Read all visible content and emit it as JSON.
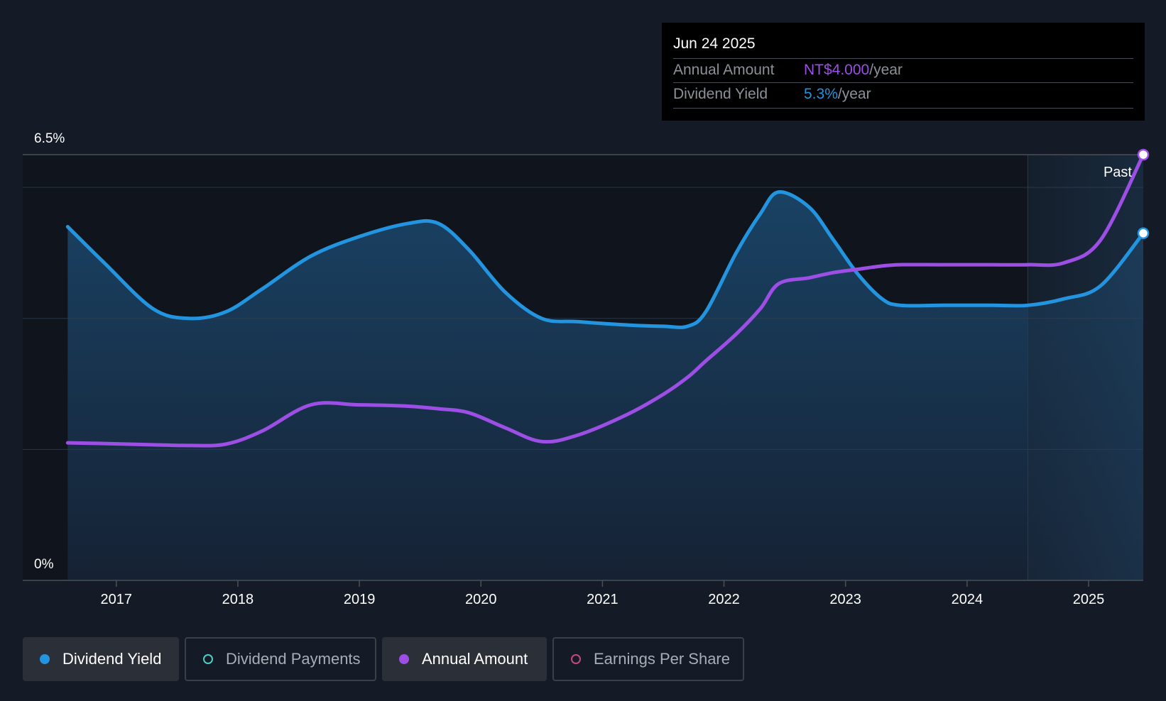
{
  "chart_data": {
    "type": "line",
    "title": "",
    "x": [
      2016.6,
      2016.9,
      2017.3,
      2017.6,
      2017.9,
      2018.2,
      2018.6,
      2019.0,
      2019.4,
      2019.65,
      2019.9,
      2020.2,
      2020.5,
      2020.8,
      2021.2,
      2021.5,
      2021.7,
      2021.85,
      2022.1,
      2022.3,
      2022.45,
      2022.7,
      2022.9,
      2023.1,
      2023.3,
      2023.45,
      2023.8,
      2024.2,
      2024.5,
      2024.8,
      2025.1,
      2025.45
    ],
    "series": [
      {
        "name": "Dividend Yield",
        "color": "#2394df",
        "values": [
          5.4,
          4.85,
          4.15,
          4.0,
          4.1,
          4.45,
          4.95,
          5.25,
          5.45,
          5.45,
          5.05,
          4.4,
          4.0,
          3.95,
          3.9,
          3.88,
          3.88,
          4.1,
          5.0,
          5.6,
          5.93,
          5.7,
          5.2,
          4.68,
          4.3,
          4.2,
          4.2,
          4.2,
          4.2,
          4.3,
          4.5,
          5.3
        ],
        "tooltip_value": "5.3%"
      },
      {
        "name": "Annual Amount",
        "color": "#9c4ee5",
        "values": [
          2.1,
          2.09,
          2.07,
          2.06,
          2.08,
          2.28,
          2.68,
          2.68,
          2.66,
          2.62,
          2.56,
          2.33,
          2.12,
          2.22,
          2.53,
          2.84,
          3.1,
          3.35,
          3.76,
          4.15,
          4.53,
          4.62,
          4.7,
          4.75,
          4.8,
          4.82,
          4.82,
          4.82,
          4.82,
          4.85,
          5.2,
          6.5
        ],
        "tooltip_value": "NT$4.000"
      }
    ],
    "y_axis": {
      "min_label": "0%",
      "max_label": "6.5%",
      "ylim": [
        0,
        6.5
      ],
      "gridlines": [
        2.0,
        4.0,
        6.0
      ]
    },
    "x_axis": {
      "ticks": [
        "2017",
        "2018",
        "2019",
        "2020",
        "2021",
        "2022",
        "2023",
        "2024",
        "2025"
      ],
      "tick_values": [
        2017,
        2018,
        2019,
        2020,
        2021,
        2022,
        2023,
        2024,
        2025
      ],
      "xlim": [
        2016.23,
        2025.45
      ]
    },
    "past_region_start": 2024.5,
    "past_label": "Past"
  },
  "tooltip": {
    "date": "Jun 24 2025",
    "rows": [
      {
        "label": "Annual Amount",
        "value": "NT$4.000",
        "unit": "/year",
        "color": "#9c4ee5"
      },
      {
        "label": "Dividend Yield",
        "value": "5.3%",
        "unit": "/year",
        "color": "#2394df"
      }
    ]
  },
  "legend": [
    {
      "label": "Dividend Yield",
      "color": "#2394df",
      "active": true
    },
    {
      "label": "Dividend Payments",
      "color": "#4ecdc4",
      "active": false
    },
    {
      "label": "Annual Amount",
      "color": "#9c4ee5",
      "active": true
    },
    {
      "label": "Earnings Per Share",
      "color": "#c04a7e",
      "active": false
    }
  ]
}
